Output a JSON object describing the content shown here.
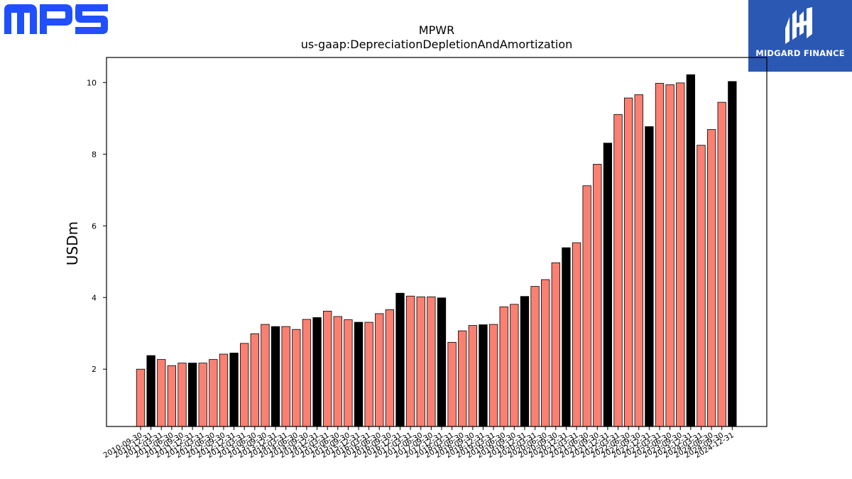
{
  "logos": {
    "left": {
      "text": "MPS",
      "color": "#1f4fff"
    },
    "right": {
      "text": "MIDGARD FINANCE",
      "bg": "#2b58b3"
    }
  },
  "chart_data": {
    "type": "bar",
    "title": "MPWR",
    "subtitle": "us-gaap:DepreciationDepletionAndAmortization",
    "xlabel": "",
    "ylabel": "USDm",
    "ylim": [
      0.4,
      10.7
    ],
    "yticks": [
      2,
      4,
      6,
      8,
      10
    ],
    "grid": false,
    "colors": {
      "quarter": "#fa8072",
      "annual": "#000000",
      "edge": "#000000"
    },
    "categories": [
      "2010-09-30",
      "2010-12-31",
      "2011-03-31",
      "2011-06-30",
      "2011-09-30",
      "2011-12-31",
      "2012-03-31",
      "2012-06-30",
      "2012-09-30",
      "2012-12-31",
      "2013-03-31",
      "2013-06-30",
      "2013-09-30",
      "2013-12-31",
      "2014-03-31",
      "2014-06-30",
      "2014-09-30",
      "2014-12-31",
      "2015-03-31",
      "2015-06-30",
      "2015-09-30",
      "2015-12-31",
      "2016-03-31",
      "2016-06-30",
      "2016-09-30",
      "2016-12-31",
      "2017-03-31",
      "2017-06-30",
      "2017-09-30",
      "2017-12-31",
      "2018-03-31",
      "2018-06-30",
      "2018-09-30",
      "2018-12-31",
      "2019-03-31",
      "2019-06-30",
      "2019-09-30",
      "2019-12-31",
      "2020-03-31",
      "2020-06-30",
      "2020-09-30",
      "2020-12-31",
      "2021-03-31",
      "2021-06-30",
      "2021-09-30",
      "2021-12-31",
      "2022-03-31",
      "2022-06-30",
      "2022-09-30",
      "2022-12-31",
      "2023-03-31",
      "2023-06-30",
      "2023-09-30",
      "2023-12-31",
      "2024-03-31",
      "2024-06-30",
      "2024-09-30",
      "2024-12-31"
    ],
    "values": [
      2.0,
      2.38,
      2.27,
      2.1,
      2.17,
      2.17,
      2.17,
      2.27,
      2.42,
      2.45,
      2.72,
      2.99,
      3.25,
      3.19,
      3.19,
      3.11,
      3.39,
      3.44,
      3.62,
      3.47,
      3.38,
      3.31,
      3.31,
      3.55,
      3.66,
      4.12,
      4.04,
      4.02,
      4.02,
      3.99,
      2.75,
      3.07,
      3.22,
      3.24,
      3.25,
      3.74,
      3.81,
      4.03,
      4.31,
      4.5,
      4.97,
      5.39,
      5.53,
      7.12,
      7.72,
      8.31,
      9.11,
      9.57,
      9.66,
      8.77,
      9.98,
      9.94,
      9.99,
      10.22,
      8.25,
      8.69,
      9.45,
      10.03
    ],
    "annual": [
      false,
      true,
      false,
      false,
      false,
      true,
      false,
      false,
      false,
      true,
      false,
      false,
      false,
      true,
      false,
      false,
      false,
      true,
      false,
      false,
      false,
      true,
      false,
      false,
      false,
      true,
      false,
      false,
      false,
      true,
      false,
      false,
      false,
      true,
      false,
      false,
      false,
      true,
      false,
      false,
      false,
      true,
      false,
      false,
      false,
      true,
      false,
      false,
      false,
      true,
      false,
      false,
      false,
      true,
      false,
      false,
      false,
      true
    ]
  }
}
